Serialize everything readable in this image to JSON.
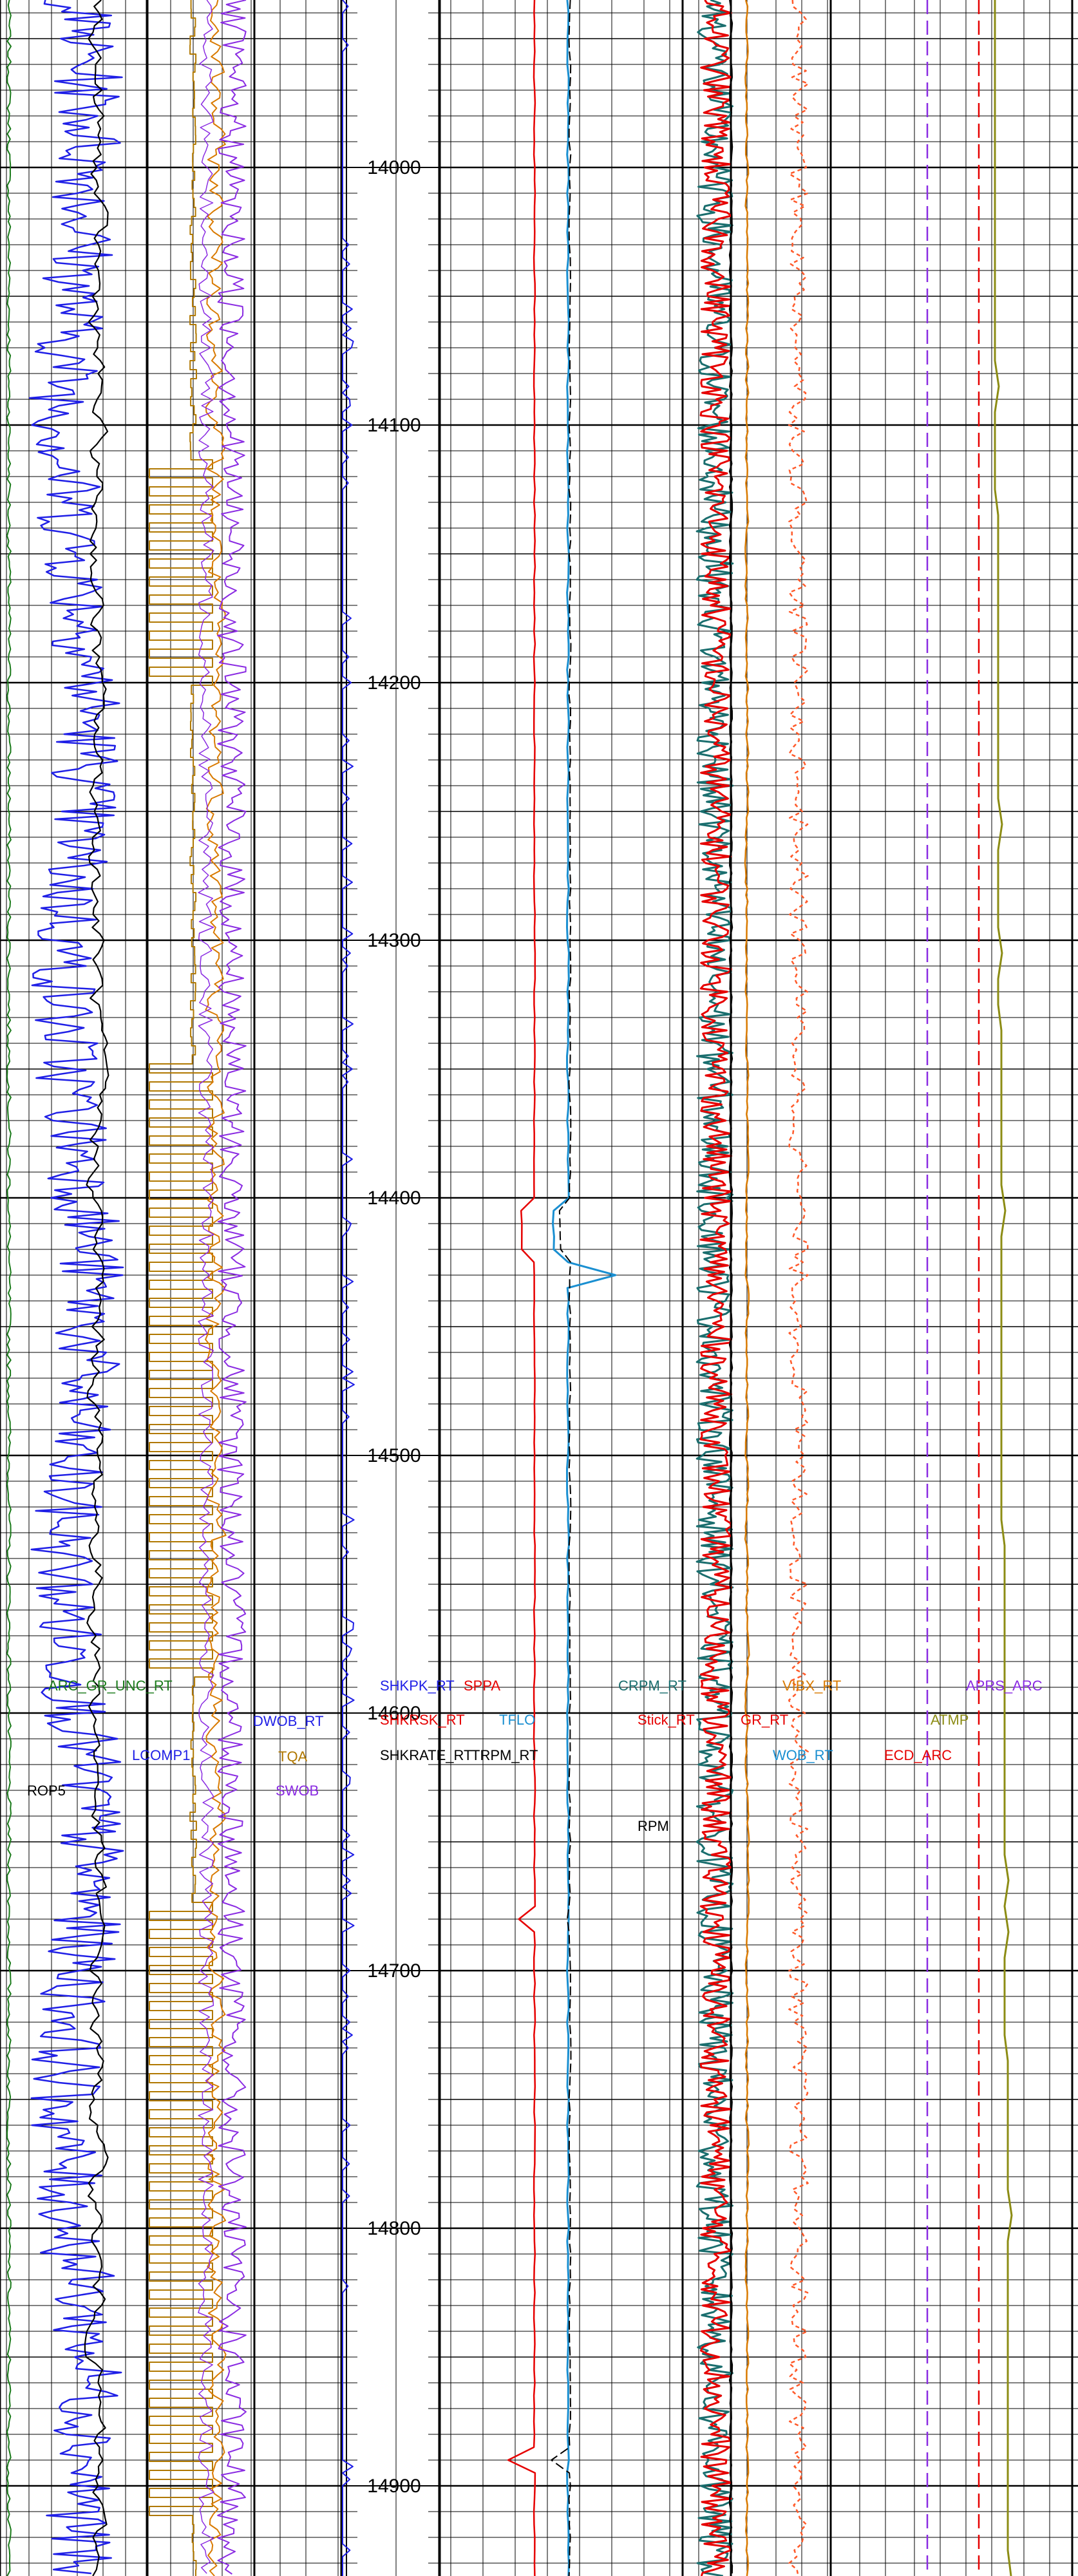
{
  "chart_data": {
    "type": "line",
    "depth_axis": {
      "range": [
        13935,
        14935
      ],
      "ticks": [
        14000,
        14100,
        14200,
        14300,
        14400,
        14500,
        14600,
        14700,
        14800,
        14900
      ]
    },
    "colors": {
      "green": "#1a7a1a",
      "blue": "#1f1fe6",
      "black": "#000000",
      "orange": "#d97a00",
      "brown": "#b07800",
      "purple": "#8a2be2",
      "red": "#e60000",
      "teal": "#1a6e6e",
      "cyan": "#1a8fd1",
      "olive": "#8c8c14",
      "salmon": "#ff5a2a"
    },
    "labels": [
      {
        "name": "ARC_GR_UNC_RT",
        "color": "#1a7a1a"
      },
      {
        "name": "ROP5",
        "color": "#000000"
      },
      {
        "name": "LCOMP1",
        "color": "#1f1fe6"
      },
      {
        "name": "DWOB_RT",
        "color": "#1f1fe6"
      },
      {
        "name": "TQA",
        "color": "#b07800"
      },
      {
        "name": "SWOB",
        "color": "#8a2be2"
      },
      {
        "name": "SHKPK_RT",
        "color": "#1f1fe6"
      },
      {
        "name": "SHKRSK_RT",
        "color": "#e60000"
      },
      {
        "name": "SHKRATE_RT",
        "color": "#000000"
      },
      {
        "name": "SPPA",
        "color": "#e60000"
      },
      {
        "name": "TFLO",
        "color": "#1a8fd1"
      },
      {
        "name": "TRPM_RT",
        "color": "#000000"
      },
      {
        "name": "CRPM_RT",
        "color": "#1a6e6e"
      },
      {
        "name": "Stick_RT",
        "color": "#e60000"
      },
      {
        "name": "RPM",
        "color": "#000000"
      },
      {
        "name": "GR_RT",
        "color": "#e60000"
      },
      {
        "name": "VIBX_RT",
        "color": "#d97a00"
      },
      {
        "name": "WOB_RT",
        "color": "#1a8fd1"
      },
      {
        "name": "APRS_ARC",
        "color": "#8a2be2"
      },
      {
        "name": "ATMP",
        "color": "#8c8c14"
      },
      {
        "name": "ECD_ARC",
        "color": "#e60000"
      }
    ]
  }
}
